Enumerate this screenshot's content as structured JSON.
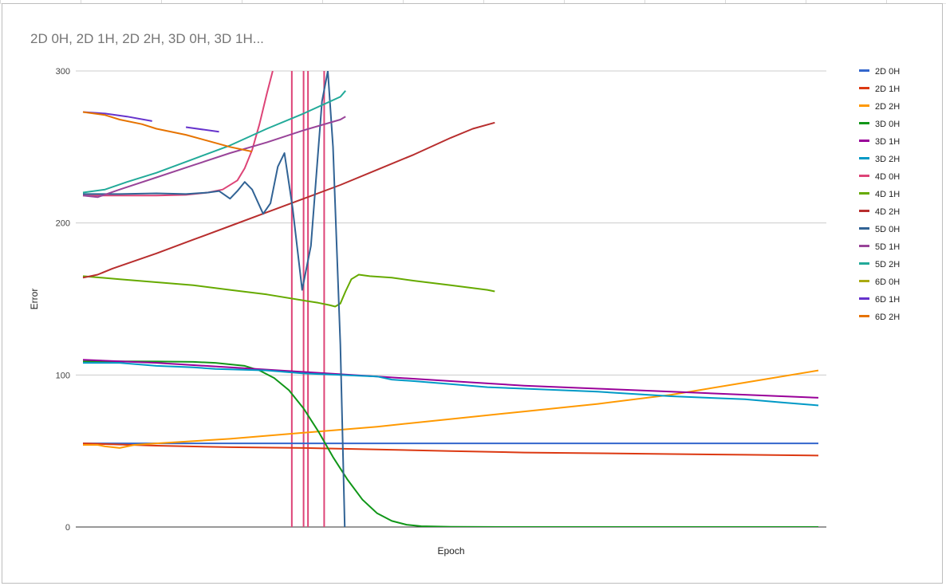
{
  "chart_data": {
    "type": "line",
    "title": "2D 0H, 2D 1H, 2D 2H, 3D 0H, 3D 1H...",
    "xlabel": "Epoch",
    "ylabel": "Error",
    "ylim": [
      0,
      300
    ],
    "yticks": [
      "0",
      "100",
      "200",
      "300"
    ],
    "xlim": [
      0,
      100
    ],
    "legend_position": "right",
    "grid": true,
    "series": [
      {
        "name": "2D 0H",
        "color": "#3366cc",
        "points": [
          [
            0,
            55
          ],
          [
            100,
            55
          ]
        ]
      },
      {
        "name": "2D 1H",
        "color": "#dc3912",
        "points": [
          [
            0,
            55
          ],
          [
            10,
            53.5
          ],
          [
            20,
            52.5
          ],
          [
            30,
            52
          ],
          [
            40,
            51
          ],
          [
            50,
            50
          ],
          [
            60,
            49
          ],
          [
            70,
            48.5
          ],
          [
            80,
            48
          ],
          [
            90,
            47.5
          ],
          [
            100,
            47
          ]
        ]
      },
      {
        "name": "2D 2H",
        "color": "#ff9900",
        "points": [
          [
            0,
            54
          ],
          [
            2,
            54
          ],
          [
            3,
            53
          ],
          [
            5,
            52
          ],
          [
            7,
            54
          ],
          [
            10,
            55
          ],
          [
            20,
            58
          ],
          [
            30,
            62
          ],
          [
            40,
            66
          ],
          [
            50,
            71
          ],
          [
            60,
            76
          ],
          [
            70,
            81
          ],
          [
            80,
            87
          ],
          [
            90,
            95
          ],
          [
            100,
            103
          ]
        ]
      },
      {
        "name": "3D 0H",
        "color": "#109618",
        "points": [
          [
            0,
            109
          ],
          [
            5,
            109
          ],
          [
            10,
            108.9
          ],
          [
            15,
            108.6
          ],
          [
            18,
            108
          ],
          [
            20,
            107
          ],
          [
            22,
            106
          ],
          [
            24,
            103
          ],
          [
            26,
            98
          ],
          [
            28,
            90
          ],
          [
            30,
            78
          ],
          [
            32,
            63
          ],
          [
            34,
            46
          ],
          [
            36,
            31
          ],
          [
            38,
            18
          ],
          [
            40,
            9
          ],
          [
            42,
            4
          ],
          [
            44,
            1.5
          ],
          [
            46,
            0.5
          ],
          [
            50,
            0.1
          ],
          [
            60,
            0
          ],
          [
            100,
            0
          ]
        ]
      },
      {
        "name": "3D 1H",
        "color": "#990099",
        "points": [
          [
            0,
            110
          ],
          [
            10,
            108
          ],
          [
            20,
            105
          ],
          [
            30,
            102
          ],
          [
            40,
            99
          ],
          [
            50,
            96
          ],
          [
            60,
            93
          ],
          [
            70,
            91
          ],
          [
            80,
            89
          ],
          [
            90,
            87
          ],
          [
            100,
            85
          ]
        ]
      },
      {
        "name": "3D 2H",
        "color": "#0099c6",
        "points": [
          [
            0,
            108
          ],
          [
            5,
            108
          ],
          [
            10,
            106
          ],
          [
            15,
            105
          ],
          [
            18,
            104
          ],
          [
            25,
            103
          ],
          [
            30,
            101
          ],
          [
            35,
            100
          ],
          [
            40,
            99
          ],
          [
            42,
            97
          ],
          [
            45,
            96
          ],
          [
            50,
            94
          ],
          [
            55,
            92
          ],
          [
            60,
            91
          ],
          [
            70,
            89
          ],
          [
            80,
            86
          ],
          [
            90,
            84
          ],
          [
            95,
            82
          ],
          [
            100,
            80
          ]
        ]
      },
      {
        "name": "4D 0H",
        "color": "#dd4477",
        "points": [
          [
            0,
            218
          ],
          [
            5,
            218
          ],
          [
            10,
            218
          ],
          [
            14,
            218.5
          ],
          [
            17,
            220
          ],
          [
            19,
            222
          ],
          [
            21,
            228
          ],
          [
            22,
            236
          ],
          [
            23,
            248
          ],
          [
            24,
            265
          ],
          [
            25,
            285
          ],
          [
            25.8,
            300
          ]
        ]
      },
      {
        "name": "4D 1H",
        "color": "#66aa00",
        "points": [
          [
            0,
            165
          ],
          [
            5,
            163
          ],
          [
            10,
            161
          ],
          [
            15,
            159
          ],
          [
            20,
            156
          ],
          [
            25,
            153
          ],
          [
            30,
            149
          ],
          [
            32,
            147.5
          ],
          [
            33.5,
            146
          ],
          [
            34.3,
            145
          ],
          [
            35,
            147
          ],
          [
            35.7,
            155
          ],
          [
            36.5,
            163
          ],
          [
            37.5,
            166
          ],
          [
            39,
            165
          ],
          [
            42,
            164
          ],
          [
            45,
            162
          ],
          [
            50,
            159
          ],
          [
            55,
            156
          ],
          [
            56,
            155
          ]
        ]
      },
      {
        "name": "4D 2H",
        "color": "#b82e2e",
        "points": [
          [
            0,
            164
          ],
          [
            2,
            166
          ],
          [
            4,
            170
          ],
          [
            10,
            180
          ],
          [
            15,
            189
          ],
          [
            20,
            198
          ],
          [
            25,
            207
          ],
          [
            30,
            216
          ],
          [
            35,
            225
          ],
          [
            40,
            235
          ],
          [
            45,
            245
          ],
          [
            50,
            256
          ],
          [
            53,
            262
          ],
          [
            56,
            266
          ]
        ]
      },
      {
        "name": "5D 0H",
        "color": "#316395",
        "points": [
          [
            0,
            219
          ],
          [
            5,
            219
          ],
          [
            10,
            219.5
          ],
          [
            14,
            219
          ],
          [
            17,
            220
          ],
          [
            18.5,
            221
          ],
          [
            20,
            216
          ],
          [
            21,
            221
          ],
          [
            22,
            227
          ],
          [
            23,
            222
          ],
          [
            24.5,
            206
          ],
          [
            25.5,
            213
          ],
          [
            26.5,
            237
          ],
          [
            27.4,
            246
          ],
          [
            28.5,
            210
          ],
          [
            29.8,
            156
          ],
          [
            31,
            185
          ],
          [
            32.5,
            280
          ],
          [
            33.3,
            300
          ],
          [
            34,
            250
          ],
          [
            35,
            120
          ],
          [
            35.6,
            0
          ]
        ]
      },
      {
        "name": "5D 1H",
        "color": "#994499",
        "points": [
          [
            0,
            218
          ],
          [
            2,
            217
          ],
          [
            5,
            222
          ],
          [
            10,
            230
          ],
          [
            15,
            238
          ],
          [
            20,
            246
          ],
          [
            25,
            253
          ],
          [
            30,
            261
          ],
          [
            35,
            268
          ],
          [
            35.7,
            270
          ]
        ]
      },
      {
        "name": "5D 2H",
        "color": "#22aa99",
        "points": [
          [
            0,
            220
          ],
          [
            3,
            222
          ],
          [
            6,
            227
          ],
          [
            10,
            233
          ],
          [
            15,
            242
          ],
          [
            20,
            251
          ],
          [
            25,
            262
          ],
          [
            30,
            272
          ],
          [
            35,
            283
          ],
          [
            35.7,
            287
          ]
        ]
      },
      {
        "name": "6D 0H",
        "color": "#aaaa11",
        "points": []
      },
      {
        "name": "6D 1H",
        "color": "#6633cc",
        "points": [
          [
            0,
            273
          ],
          [
            3,
            272
          ],
          [
            6,
            270
          ],
          [
            9.4,
            267
          ]
        ]
      },
      {
        "name": "6D 2H",
        "color": "#e67300",
        "points": [
          [
            0,
            273
          ],
          [
            3,
            271
          ],
          [
            5,
            268
          ],
          [
            8,
            265
          ],
          [
            10,
            262
          ],
          [
            14,
            258
          ],
          [
            17,
            254
          ],
          [
            20,
            250
          ],
          [
            23,
            247
          ]
        ]
      }
    ],
    "segments": [
      {
        "series": "6D 1H",
        "color": "#6633cc",
        "points": [
          [
            14,
            263
          ],
          [
            18.5,
            260
          ]
        ]
      }
    ],
    "spikes": [
      {
        "series": "4D 0H",
        "color": "#dd4477",
        "x": 28.4
      },
      {
        "series": "4D 0H",
        "color": "#dd4477",
        "x": 30
      },
      {
        "series": "4D 0H",
        "color": "#dd4477",
        "x": 30.6
      },
      {
        "series": "4D 0H",
        "color": "#dd4477",
        "x": 32.8
      }
    ]
  }
}
